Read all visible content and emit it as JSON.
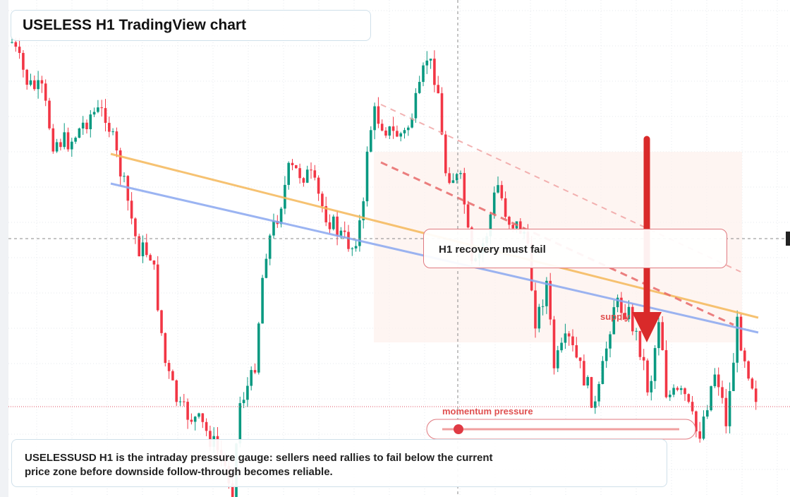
{
  "header": {
    "title": "USELESS H1 TradingView chart"
  },
  "annotations": {
    "note": "H1 recovery must fail",
    "zone_label": "supply",
    "gauge_label": "momentum pressure"
  },
  "caption": "USELESSUSD H1 is the intraday pressure gauge: sellers need rallies to fail below the current price zone before downside follow-through becomes reliable."
}
